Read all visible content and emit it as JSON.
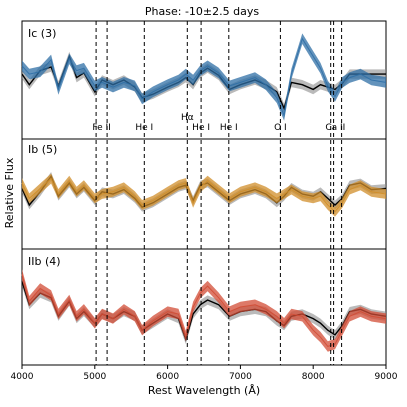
{
  "chart_data": {
    "type": "line",
    "title": "Phase: -10±2.5 days",
    "xlabel": "Rest Wavelength (Å)",
    "ylabel": "Relative Flux",
    "xlim": [
      4000,
      9000
    ],
    "xticks": [
      "4000",
      "5000",
      "6000",
      "7000",
      "8000",
      "9000"
    ],
    "line_markers": [
      {
        "label": "Fe II",
        "x": [
          5018,
          5169
        ]
      },
      {
        "label": "He I",
        "x": [
          5680
        ]
      },
      {
        "label": "Hα",
        "x": [
          6270
        ]
      },
      {
        "label": "He I",
        "x": [
          6460
        ]
      },
      {
        "label": "He I",
        "x": [
          6840
        ]
      },
      {
        "label": "O I",
        "x": [
          7550
        ]
      },
      {
        "label": "Ca II",
        "x": [
          8240,
          8280,
          8390
        ]
      }
    ],
    "panels": [
      {
        "label": "Ic (3)",
        "color": "#2f6fa6",
        "comparison_color": "#8c8c8c",
        "series": [
          {
            "role": "comparison-mean",
            "x": [
              4000,
              4100,
              4250,
              4400,
              4500,
              4650,
              4750,
              4850,
              5000,
              5100,
              5250,
              5400,
              5550,
              5650,
              5800,
              6000,
              6150,
              6250,
              6350,
              6450,
              6550,
              6700,
              6850,
              7000,
              7200,
              7350,
              7500,
              7600,
              7700,
              7850,
              8000,
              8100,
              8200,
              8300,
              8400,
              8500,
              8650,
              8800,
              9000
            ],
            "y": [
              0.55,
              0.46,
              0.58,
              0.61,
              0.45,
              0.7,
              0.52,
              0.56,
              0.4,
              0.5,
              0.46,
              0.5,
              0.44,
              0.35,
              0.38,
              0.44,
              0.48,
              0.52,
              0.46,
              0.56,
              0.6,
              0.54,
              0.42,
              0.46,
              0.5,
              0.46,
              0.4,
              0.26,
              0.48,
              0.46,
              0.42,
              0.46,
              0.44,
              0.42,
              0.47,
              0.55,
              0.55,
              0.55,
              0.55
            ]
          },
          {
            "role": "subtype-mean",
            "x": [
              4000,
              4100,
              4250,
              4400,
              4500,
              4650,
              4750,
              4850,
              5000,
              5100,
              5250,
              5400,
              5550,
              5650,
              5800,
              6000,
              6150,
              6250,
              6350,
              6450,
              6550,
              6700,
              6850,
              7000,
              7200,
              7350,
              7500,
              7600,
              7700,
              7850,
              8000,
              8100,
              8200,
              8300,
              8400,
              8500,
              8650,
              8800,
              9000
            ],
            "y": [
              0.62,
              0.55,
              0.57,
              0.67,
              0.42,
              0.68,
              0.58,
              0.6,
              0.45,
              0.48,
              0.44,
              0.48,
              0.45,
              0.34,
              0.4,
              0.46,
              0.5,
              0.55,
              0.5,
              0.58,
              0.62,
              0.56,
              0.45,
              0.48,
              0.52,
              0.46,
              0.35,
              0.2,
              0.55,
              0.85,
              0.7,
              0.6,
              0.45,
              0.36,
              0.48,
              0.52,
              0.55,
              0.5,
              0.48
            ]
          }
        ]
      },
      {
        "label": "Ib (5)",
        "color": "#d08e29",
        "comparison_color": "#8c8c8c",
        "series": [
          {
            "role": "comparison-mean",
            "x": [
              4000,
              4100,
              4250,
              4400,
              4500,
              4650,
              4750,
              4850,
              5000,
              5100,
              5250,
              5400,
              5550,
              5650,
              5800,
              6000,
              6150,
              6250,
              6350,
              6450,
              6550,
              6700,
              6850,
              7000,
              7200,
              7350,
              7500,
              7600,
              7700,
              7850,
              8000,
              8100,
              8200,
              8300,
              8400,
              8500,
              8650,
              8800,
              9000
            ],
            "y": [
              0.55,
              0.4,
              0.52,
              0.66,
              0.48,
              0.6,
              0.5,
              0.56,
              0.44,
              0.52,
              0.5,
              0.54,
              0.46,
              0.38,
              0.42,
              0.5,
              0.56,
              0.58,
              0.44,
              0.58,
              0.6,
              0.52,
              0.44,
              0.5,
              0.54,
              0.5,
              0.42,
              0.48,
              0.56,
              0.5,
              0.48,
              0.52,
              0.46,
              0.4,
              0.46,
              0.58,
              0.6,
              0.54,
              0.55
            ]
          },
          {
            "role": "subtype-mean",
            "x": [
              4000,
              4100,
              4250,
              4400,
              4500,
              4650,
              4750,
              4850,
              5000,
              5100,
              5250,
              5400,
              5550,
              5650,
              5800,
              6000,
              6150,
              6250,
              6350,
              6450,
              6550,
              6700,
              6850,
              7000,
              7200,
              7350,
              7500,
              7600,
              7700,
              7850,
              8000,
              8100,
              8200,
              8300,
              8400,
              8500,
              8650,
              8800,
              9000
            ],
            "y": [
              0.6,
              0.46,
              0.55,
              0.64,
              0.5,
              0.62,
              0.52,
              0.58,
              0.46,
              0.5,
              0.52,
              0.56,
              0.48,
              0.4,
              0.44,
              0.52,
              0.58,
              0.6,
              0.42,
              0.56,
              0.62,
              0.54,
              0.46,
              0.52,
              0.56,
              0.52,
              0.46,
              0.5,
              0.54,
              0.48,
              0.46,
              0.48,
              0.4,
              0.34,
              0.42,
              0.54,
              0.58,
              0.52,
              0.5
            ]
          }
        ]
      },
      {
        "label": "IIb (4)",
        "color": "#d24c35",
        "comparison_color": "#8c8c8c",
        "series": [
          {
            "role": "comparison-mean",
            "x": [
              4000,
              4100,
              4250,
              4400,
              4500,
              4650,
              4750,
              4850,
              5000,
              5100,
              5250,
              5400,
              5550,
              5650,
              5800,
              6000,
              6150,
              6250,
              6350,
              6450,
              6550,
              6700,
              6850,
              7000,
              7200,
              7350,
              7500,
              7600,
              7700,
              7850,
              8000,
              8100,
              8200,
              8300,
              8400,
              8500,
              8650,
              8800,
              9000
            ],
            "y": [
              0.72,
              0.52,
              0.62,
              0.58,
              0.42,
              0.55,
              0.4,
              0.46,
              0.36,
              0.44,
              0.4,
              0.46,
              0.42,
              0.3,
              0.36,
              0.44,
              0.4,
              0.22,
              0.44,
              0.52,
              0.56,
              0.52,
              0.42,
              0.46,
              0.48,
              0.46,
              0.38,
              0.34,
              0.42,
              0.44,
              0.4,
              0.36,
              0.3,
              0.26,
              0.34,
              0.46,
              0.48,
              0.44,
              0.42
            ]
          },
          {
            "role": "subtype-mean",
            "x": [
              4000,
              4100,
              4250,
              4400,
              4500,
              4650,
              4750,
              4850,
              5000,
              5100,
              5250,
              5400,
              5550,
              5650,
              5800,
              6000,
              6150,
              6250,
              6350,
              6450,
              6550,
              6700,
              6850,
              7000,
              7200,
              7350,
              7500,
              7600,
              7700,
              7850,
              8000,
              8100,
              8200,
              8300,
              8400,
              8500,
              8650,
              8800,
              9000
            ],
            "y": [
              0.78,
              0.55,
              0.66,
              0.6,
              0.44,
              0.56,
              0.42,
              0.48,
              0.36,
              0.44,
              0.4,
              0.48,
              0.42,
              0.3,
              0.38,
              0.46,
              0.44,
              0.25,
              0.5,
              0.62,
              0.68,
              0.58,
              0.46,
              0.5,
              0.52,
              0.48,
              0.42,
              0.36,
              0.44,
              0.42,
              0.3,
              0.24,
              0.16,
              0.18,
              0.3,
              0.42,
              0.46,
              0.42,
              0.4
            ]
          }
        ]
      }
    ]
  }
}
